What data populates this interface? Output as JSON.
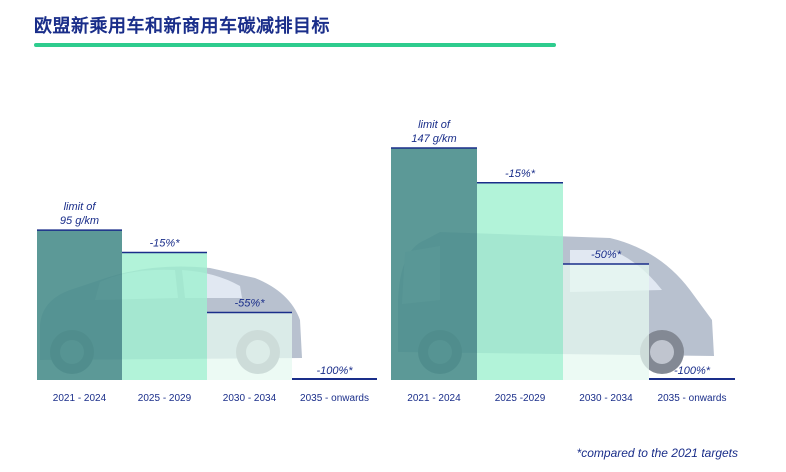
{
  "title": "欧盟新乘用车和新商用车碳减排目标",
  "footnote": "*compared to the 2021 targets",
  "colors": {
    "title": "#1a2e8a",
    "accent_rule": "#2ecc8e",
    "bar_base": "#4a8e8c",
    "bar_15": "#9ff0cf",
    "bar_50": "#e6f8f0",
    "bar_100": "#1a2e8a",
    "label": "#1a2e8a"
  },
  "chart_data": [
    {
      "type": "bar",
      "name": "passenger cars",
      "categories": [
        "2021 - 2024",
        "2025 - 2029",
        "2030 - 2034",
        "2035 - onwards"
      ],
      "values": [
        95,
        80.75,
        42.75,
        0
      ],
      "bar_labels": [
        "limit of\n95 g/km",
        "-15%*",
        "-55%*",
        "-100%*"
      ],
      "unit": "g/km",
      "ylim": [
        0,
        150
      ]
    },
    {
      "type": "bar",
      "name": "vans",
      "categories": [
        "2021 - 2024",
        "2025 -2029",
        "2030 - 2034",
        "2035 - onwards"
      ],
      "values": [
        147,
        124.95,
        73.5,
        0
      ],
      "bar_labels": [
        "limit of\n147 g/km",
        "-15%*",
        "-50%*",
        "-100%*"
      ],
      "unit": "g/km",
      "ylim": [
        0,
        150
      ]
    }
  ]
}
